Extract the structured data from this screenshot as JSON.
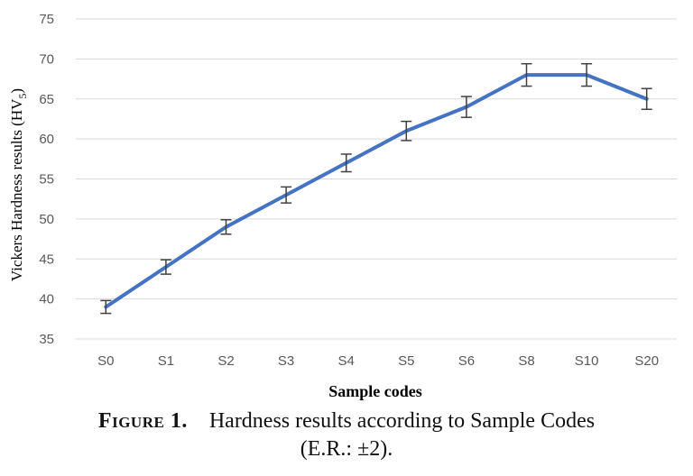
{
  "chart_data": {
    "type": "line",
    "categories": [
      "S0",
      "S1",
      "S2",
      "S3",
      "S4",
      "S5",
      "S6",
      "S8",
      "S10",
      "S20"
    ],
    "series": [
      {
        "values": [
          39,
          44,
          49,
          53,
          57,
          61,
          64,
          68,
          68,
          65
        ],
        "error": [
          0.8,
          0.9,
          0.9,
          1.0,
          1.1,
          1.2,
          1.3,
          1.4,
          1.4,
          1.3
        ]
      }
    ],
    "ylim": [
      35,
      75
    ],
    "yticks": [
      35,
      40,
      45,
      50,
      55,
      60,
      65,
      70,
      75
    ],
    "ylabel_main": "Vickers Hardness results (HV",
    "ylabel_sub": "5",
    "ylabel_end": ")",
    "xlabel": "Sample codes",
    "grid": true,
    "legend": "none"
  },
  "colors": {
    "line": "#4472c4",
    "grid": "#d9d9d9",
    "error_bar": "#404040",
    "tick_text": "#595959"
  },
  "caption": {
    "label": "Figure 1.",
    "line1": "Hardness results according to Sample Codes",
    "line2": "(E.R.: ±2)."
  }
}
